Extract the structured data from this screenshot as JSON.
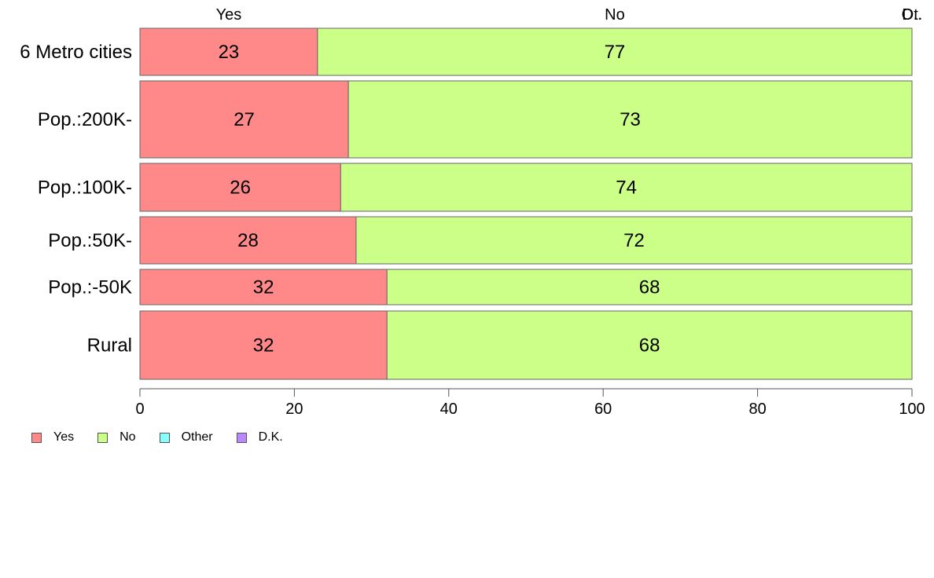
{
  "chart_data": {
    "type": "bar",
    "orientation": "horizontal",
    "stacked": true,
    "categories": [
      "6 Metro cities",
      "Pop.:200K-",
      "Pop.:100K-",
      "Pop.:50K-",
      "Pop.:-50K",
      "Rural"
    ],
    "series": [
      {
        "name": "Yes",
        "color": "#ff8888",
        "values": [
          23,
          27,
          26,
          28,
          32,
          32
        ]
      },
      {
        "name": "No",
        "color": "#ccff88",
        "values": [
          77,
          73,
          74,
          72,
          68,
          68
        ]
      },
      {
        "name": "Other",
        "color": "#88ffff",
        "values": [
          0,
          0,
          0,
          0,
          0,
          0
        ]
      },
      {
        "name": "D.K.",
        "color": "#bb88ff",
        "values": [
          0,
          0,
          0,
          0,
          0,
          0
        ]
      }
    ],
    "top_labels": [
      "Yes",
      "No",
      "Ot.",
      "D.."
    ],
    "xlim": [
      0,
      100
    ],
    "xticks": [
      0,
      20,
      40,
      60,
      80,
      100
    ],
    "grid": false,
    "legend_position": "bottom-left"
  }
}
